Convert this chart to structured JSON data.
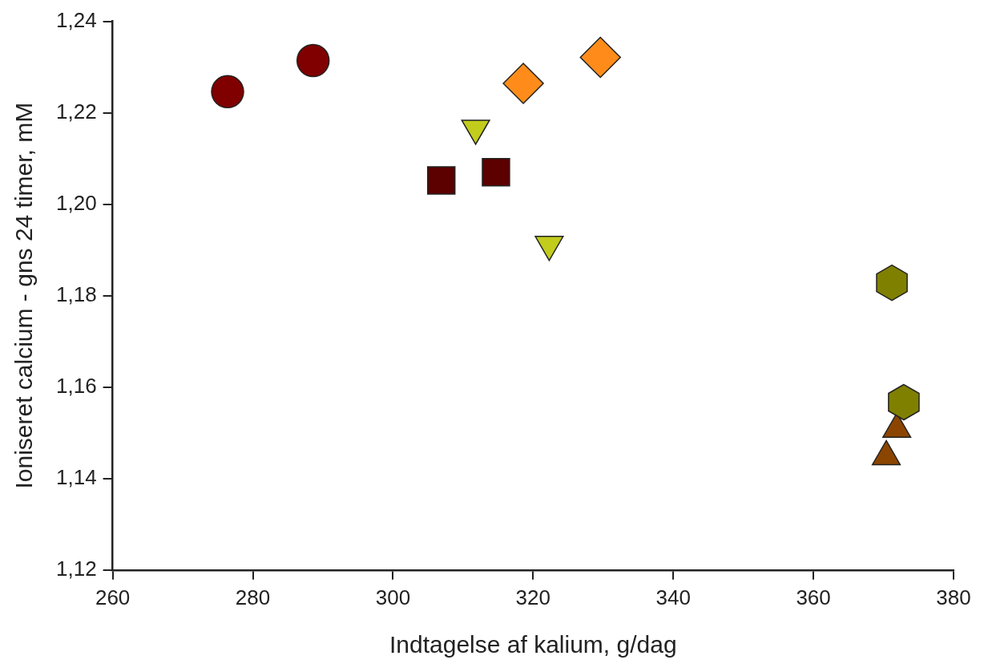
{
  "chart_data": {
    "type": "scatter",
    "xlabel": "Indtagelse af kalium, g/dag",
    "ylabel": "Ioniseret calcium - gns 24 timer, mM",
    "xlim": [
      260,
      380
    ],
    "xticks": [
      260,
      280,
      300,
      320,
      340,
      360,
      380
    ],
    "ylim": [
      1.12,
      1.24
    ],
    "yticks": [
      {
        "value": 1.12,
        "label": "1,12"
      },
      {
        "value": 1.14,
        "label": "1,14"
      },
      {
        "value": 1.16,
        "label": "1,16"
      },
      {
        "value": 1.18,
        "label": "1,18"
      },
      {
        "value": 1.2,
        "label": "1,20"
      },
      {
        "value": 1.22,
        "label": "1,22"
      },
      {
        "value": 1.24,
        "label": "1,24"
      }
    ],
    "grid": false,
    "legend": false,
    "series": [
      {
        "color": "#800000",
        "marker": "circle",
        "x": [
          276.4,
          288.6
        ],
        "values": [
          1.2246,
          1.2314
        ]
      },
      {
        "color": "#5c0000",
        "marker": "square",
        "x": [
          306.9,
          314.7
        ],
        "values": [
          1.2052,
          1.207
        ]
      },
      {
        "color": "#c2cc1c",
        "marker": "triangle-down",
        "x": [
          311.8,
          322.3
        ],
        "values": [
          1.2166,
          1.1912
        ]
      },
      {
        "color": "#ff8c1a",
        "marker": "diamond",
        "x": [
          318.6,
          329.6
        ],
        "values": [
          1.2264,
          1.2321
        ]
      },
      {
        "color": "#808000",
        "x": [
          371.2,
          372.9
        ],
        "values": [
          1.1828,
          1.1567
        ]
      },
      {
        "color": "#8b4500",
        "marker": "triangle",
        "x": [
          371.9,
          370.4
        ],
        "values": [
          1.1508,
          1.1448
        ]
      }
    ]
  }
}
